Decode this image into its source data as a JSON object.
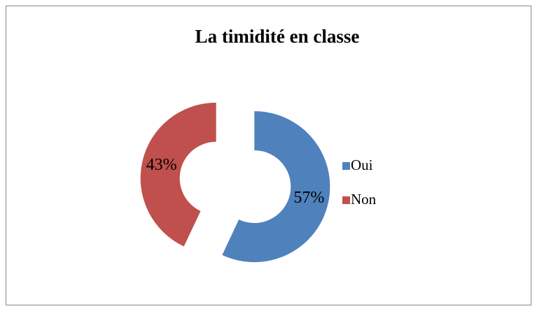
{
  "chart_data": {
    "type": "donut",
    "title": "La timidité en classe",
    "categories": [
      "Oui",
      "Non"
    ],
    "values": [
      57,
      43
    ],
    "value_labels": [
      "57%",
      "43%"
    ],
    "colors": [
      "#4f81bd",
      "#c0504d"
    ],
    "legend": "right"
  }
}
